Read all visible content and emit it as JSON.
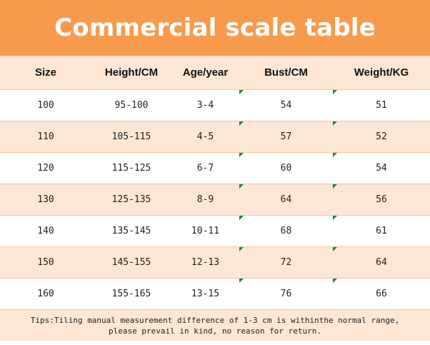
{
  "title": "Commercial scale table",
  "columns": [
    "Size",
    "Height/CM",
    "Age/year",
    "Bust/CM",
    "Weight/KG"
  ],
  "rows": [
    [
      "100",
      "95-100",
      "3-4",
      "54",
      "51"
    ],
    [
      "110",
      "105-115",
      "4-5",
      "57",
      "52"
    ],
    [
      "120",
      "115-125",
      "6-7",
      "60",
      "54"
    ],
    [
      "130",
      "125-135",
      "8-9",
      "64",
      "56"
    ],
    [
      "140",
      "135-145",
      "10-11",
      "68",
      "61"
    ],
    [
      "150",
      "145-155",
      "12-13",
      "72",
      "64"
    ],
    [
      "160",
      "155-165",
      "13-15",
      "76",
      "66"
    ]
  ],
  "tips": {
    "line1": "Tips:Tiling manual measurement difference of 1-3 cm is withinthe normal range,",
    "line2": "please prevail in kind, no reason for return."
  },
  "colors": {
    "banner": "#f79a4c",
    "stripe": "#fde6d3",
    "marker": "#1a8a2a"
  }
}
